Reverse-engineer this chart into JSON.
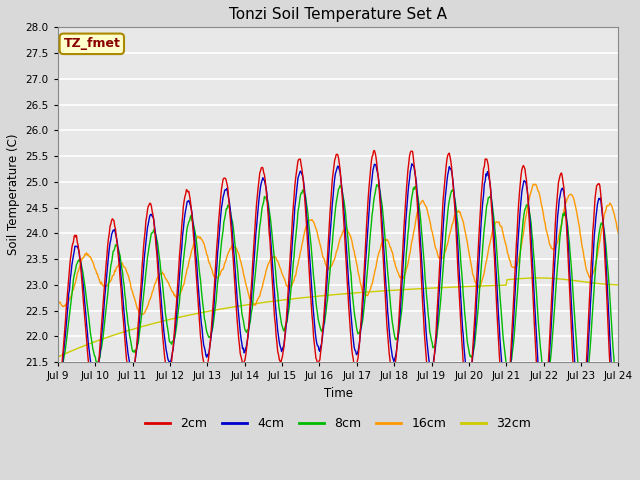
{
  "title": "Tonzi Soil Temperature Set A",
  "xlabel": "Time",
  "ylabel": "Soil Temperature (C)",
  "ylim": [
    21.5,
    28.0
  ],
  "annotation_text": "TZ_fmet",
  "annotation_bg": "#ffffcc",
  "annotation_border": "#aa8800",
  "annotation_text_color": "#880000",
  "legend_labels": [
    "2cm",
    "4cm",
    "8cm",
    "16cm",
    "32cm"
  ],
  "legend_colors": [
    "#dd0000",
    "#0000cc",
    "#00bb00",
    "#ff9900",
    "#cccc00"
  ],
  "background_color": "#d9d9d9",
  "plot_bg_color": "#e8e8e8",
  "grid_color": "#ffffff",
  "x_ticks": [
    "Jul 9",
    "Jul 10",
    "Jul 11",
    "Jul 12",
    "Jul 13",
    "Jul 14",
    "Jul 15",
    "Jul 16",
    "Jul 17",
    "Jul 18",
    "Jul 19",
    "Jul 20",
    "Jul 21",
    "Jul 22",
    "Jul 23",
    "Jul 24"
  ],
  "num_days": 15,
  "points_per_day": 48
}
